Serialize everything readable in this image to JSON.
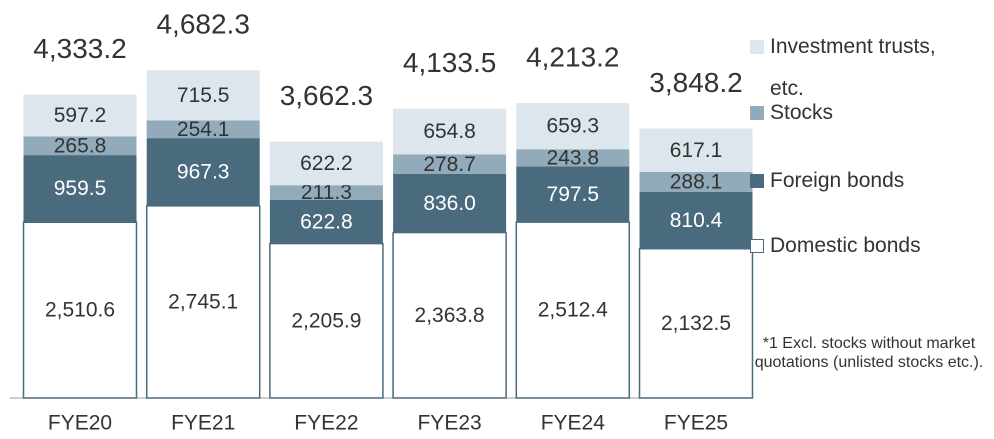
{
  "chart_data": {
    "type": "stacked_bar",
    "categories": [
      "FYE20",
      "FYE21",
      "FYE22",
      "FYE23",
      "FYE24",
      "FYE25"
    ],
    "series": [
      {
        "name": "Domestic bonds",
        "color": "#ffffff",
        "values": [
          2510.6,
          2745.1,
          2205.9,
          2363.8,
          2512.4,
          2132.5
        ],
        "value_labels": [
          "2,510.6",
          "2,745.1",
          "2,205.9",
          "2,363.8",
          "2,512.4",
          "2,132.5"
        ]
      },
      {
        "name": "Foreign bonds",
        "color": "#4a6b7e",
        "values": [
          959.5,
          967.3,
          622.8,
          836.0,
          797.5,
          810.4
        ],
        "value_labels": [
          "959.5",
          "967.3",
          "622.8",
          "836.0",
          "797.5",
          "810.4"
        ]
      },
      {
        "name": "Stocks",
        "color": "#91abba",
        "values": [
          265.8,
          254.1,
          211.3,
          278.7,
          243.8,
          288.1
        ],
        "value_labels": [
          "265.8",
          "254.1",
          "211.3",
          "278.7",
          "243.8",
          "288.1"
        ]
      },
      {
        "name": "Investment trusts, etc.",
        "color": "#dce6ec",
        "values": [
          597.2,
          715.5,
          622.2,
          654.8,
          659.3,
          617.1
        ],
        "value_labels": [
          "597.2",
          "715.5",
          "622.2",
          "654.8",
          "659.3",
          "617.1"
        ]
      }
    ],
    "totals": {
      "values": [
        4333.2,
        4682.3,
        3662.3,
        4133.5,
        4213.2,
        3848.2
      ],
      "value_labels": [
        "4,333.2",
        "4,682.3",
        "3,662.3",
        "4,133.5",
        "4,213.2",
        "3,848.2"
      ]
    },
    "note": "*1  Excl. stocks without market quotations (unlisted stocks etc.)."
  }
}
